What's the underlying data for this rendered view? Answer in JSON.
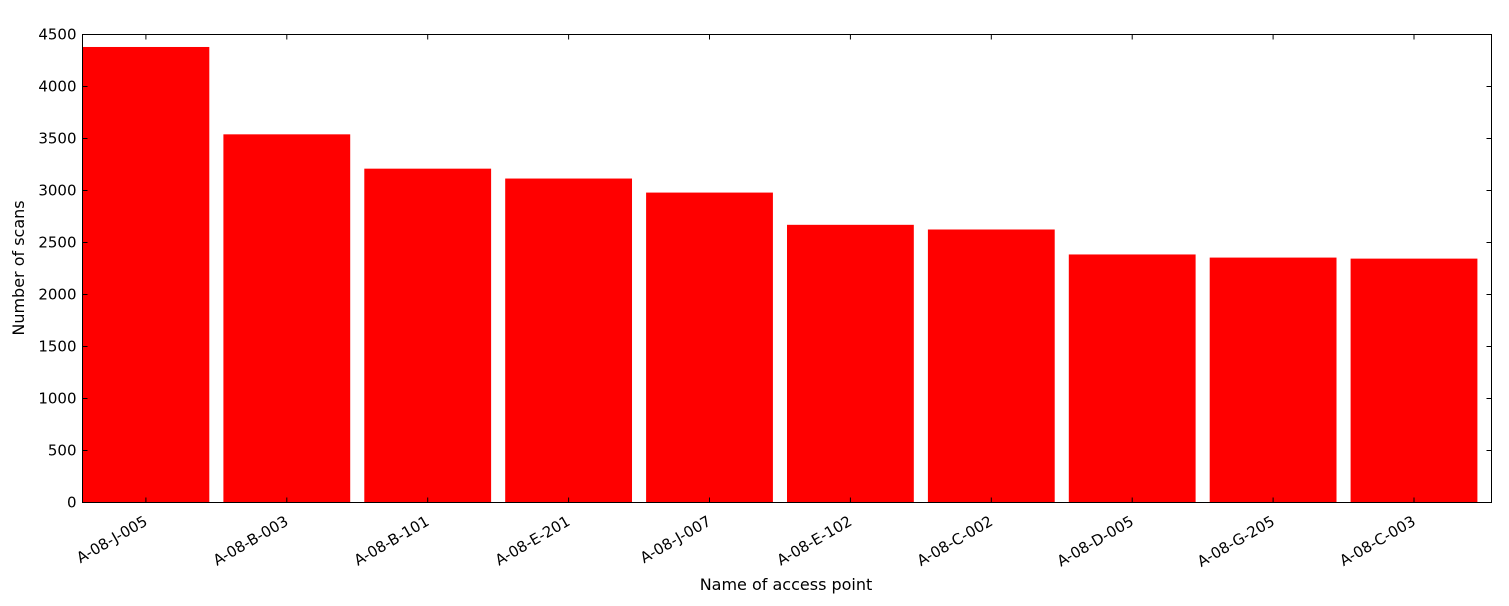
{
  "chart_data": {
    "type": "bar",
    "title": "",
    "xlabel": "Name of access point",
    "ylabel": "Number of scans",
    "ylim": [
      0,
      4500
    ],
    "yticks": [
      0,
      500,
      1000,
      1500,
      2000,
      2500,
      3000,
      3500,
      4000,
      4500
    ],
    "grid": false,
    "legend": "none",
    "bar_color": "#ff0000",
    "categories": [
      "A-08-J-005",
      "A-08-B-003",
      "A-08-B-101",
      "A-08-E-201",
      "A-08-J-007",
      "A-08-E-102",
      "A-08-C-002",
      "A-08-D-005",
      "A-08-G-205",
      "A-08-C-003"
    ],
    "values": [
      4380,
      3540,
      3210,
      3115,
      2980,
      2670,
      2625,
      2385,
      2355,
      2345
    ]
  }
}
